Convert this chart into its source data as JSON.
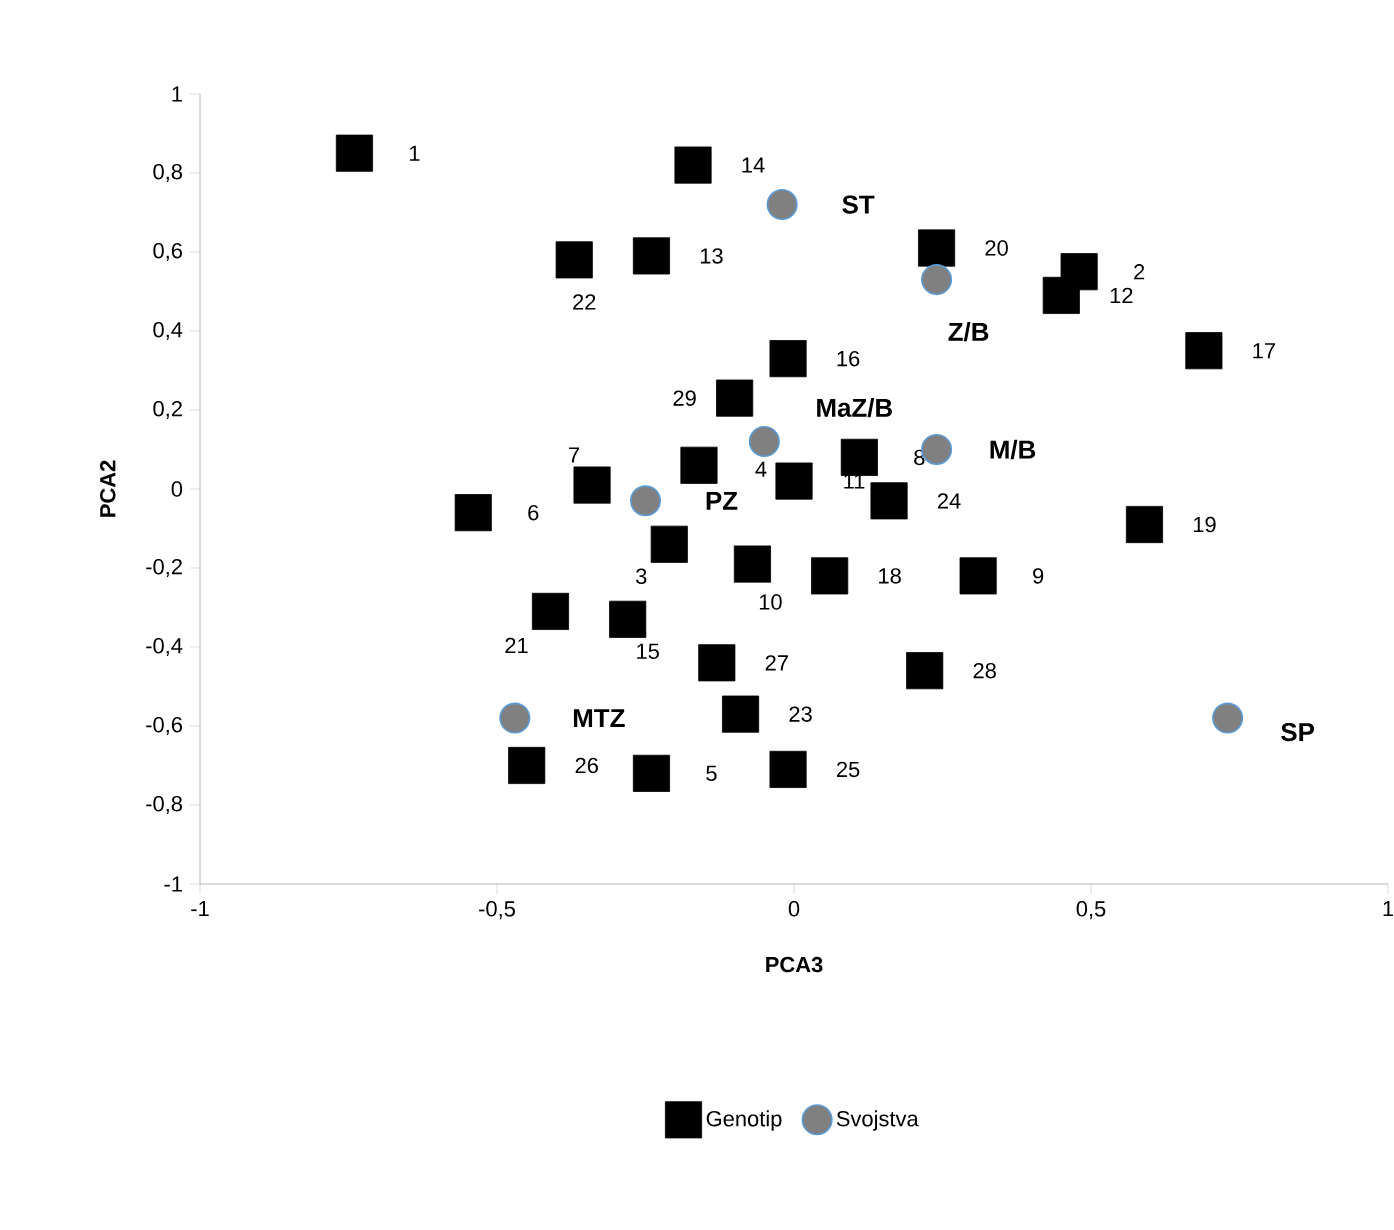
{
  "chart_data": {
    "type": "scatter",
    "xlabel": "PCA3",
    "ylabel": "PCA2",
    "xlim": [
      -1,
      1
    ],
    "ylim": [
      -1,
      1
    ],
    "xticks": [
      -1,
      {
        "value": -0.5,
        "label": "-0,5"
      },
      0,
      {
        "value": 0.5,
        "label": "0,5"
      },
      1
    ],
    "yticks": [
      -1,
      {
        "value": -0.8,
        "label": "-0,8"
      },
      {
        "value": -0.6,
        "label": "-0,6"
      },
      {
        "value": -0.4,
        "label": "-0,4"
      },
      {
        "value": -0.2,
        "label": "-0,2"
      },
      0,
      {
        "value": 0.2,
        "label": "0,2"
      },
      {
        "value": 0.4,
        "label": "0,4"
      },
      {
        "value": 0.6,
        "label": "0,6"
      },
      {
        "value": 0.8,
        "label": "0,8"
      },
      1
    ],
    "grid": false,
    "legend": "bottom",
    "series": [
      {
        "name": "Genotip",
        "color": "#000000",
        "marker": "square",
        "x": [
          -0.74,
          0.48,
          -0.21,
          -0.16,
          -0.24,
          -0.54,
          -0.34,
          0.11,
          0.31,
          -0.07,
          0.0,
          0.45,
          -0.24,
          -0.17,
          -0.28,
          -0.01,
          0.69,
          0.06,
          0.59,
          0.24,
          -0.41,
          -0.37,
          -0.09,
          0.16,
          -0.01,
          -0.45,
          -0.13,
          0.22,
          -0.1
        ],
        "values": [
          0.85,
          0.55,
          -0.14,
          0.06,
          -0.72,
          -0.06,
          0.01,
          0.08,
          -0.22,
          -0.19,
          0.02,
          0.49,
          0.59,
          0.82,
          -0.33,
          0.33,
          0.35,
          -0.22,
          -0.09,
          0.61,
          -0.31,
          0.58,
          -0.57,
          -0.03,
          -0.71,
          -0.7,
          -0.44,
          -0.46,
          0.23
        ]
      },
      {
        "name": "Svojstva",
        "color": "#808080",
        "marker": "circle",
        "x": [
          -0.02,
          0.24,
          -0.05,
          0.24,
          -0.25,
          -0.47,
          0.73
        ],
        "values": [
          0.72,
          0.53,
          0.12,
          0.1,
          -0.03,
          -0.58,
          -0.58
        ]
      }
    ],
    "annotations": [
      {
        "text": "1",
        "x": -0.74,
        "y": 0.85
      },
      {
        "text": "2",
        "x": 0.48,
        "y": 0.55
      },
      {
        "text": "3",
        "x": -0.21,
        "y": -0.14
      },
      {
        "text": "4",
        "x": -0.16,
        "y": 0.06
      },
      {
        "text": "5",
        "x": -0.24,
        "y": -0.72
      },
      {
        "text": "6",
        "x": -0.54,
        "y": -0.06
      },
      {
        "text": "7",
        "x": -0.34,
        "y": 0.01
      },
      {
        "text": "8",
        "x": 0.11,
        "y": 0.08
      },
      {
        "text": "9",
        "x": 0.31,
        "y": -0.22
      },
      {
        "text": "10",
        "x": -0.07,
        "y": -0.19
      },
      {
        "text": "11",
        "x": 0.0,
        "y": 0.02
      },
      {
        "text": "12",
        "x": 0.45,
        "y": 0.49
      },
      {
        "text": "13",
        "x": -0.24,
        "y": 0.59
      },
      {
        "text": "14",
        "x": -0.17,
        "y": 0.82
      },
      {
        "text": "15",
        "x": -0.28,
        "y": -0.33
      },
      {
        "text": "16",
        "x": -0.01,
        "y": 0.33
      },
      {
        "text": "17",
        "x": 0.69,
        "y": 0.35
      },
      {
        "text": "18",
        "x": 0.06,
        "y": -0.22
      },
      {
        "text": "19",
        "x": 0.59,
        "y": -0.09
      },
      {
        "text": "20",
        "x": 0.24,
        "y": 0.61
      },
      {
        "text": "21",
        "x": -0.41,
        "y": -0.31
      },
      {
        "text": "22",
        "x": -0.37,
        "y": 0.58
      },
      {
        "text": "23",
        "x": -0.09,
        "y": -0.57
      },
      {
        "text": "24",
        "x": 0.16,
        "y": -0.03
      },
      {
        "text": "25",
        "x": -0.01,
        "y": -0.71
      },
      {
        "text": "26",
        "x": -0.45,
        "y": -0.7
      },
      {
        "text": "27",
        "x": -0.13,
        "y": -0.44
      },
      {
        "text": "28",
        "x": 0.22,
        "y": -0.46
      },
      {
        "text": "29",
        "x": -0.1,
        "y": 0.23
      },
      {
        "text": "ST",
        "x": -0.02,
        "y": 0.72
      },
      {
        "text": "Z/B",
        "x": 0.24,
        "y": 0.53
      },
      {
        "text": "MaZ/B",
        "x": -0.05,
        "y": 0.12
      },
      {
        "text": "M/B",
        "x": 0.24,
        "y": 0.1
      },
      {
        "text": "PZ",
        "x": -0.25,
        "y": -0.03
      },
      {
        "text": "MTZ",
        "x": -0.47,
        "y": -0.58
      },
      {
        "text": "SP",
        "x": 0.73,
        "y": -0.58
      }
    ]
  }
}
